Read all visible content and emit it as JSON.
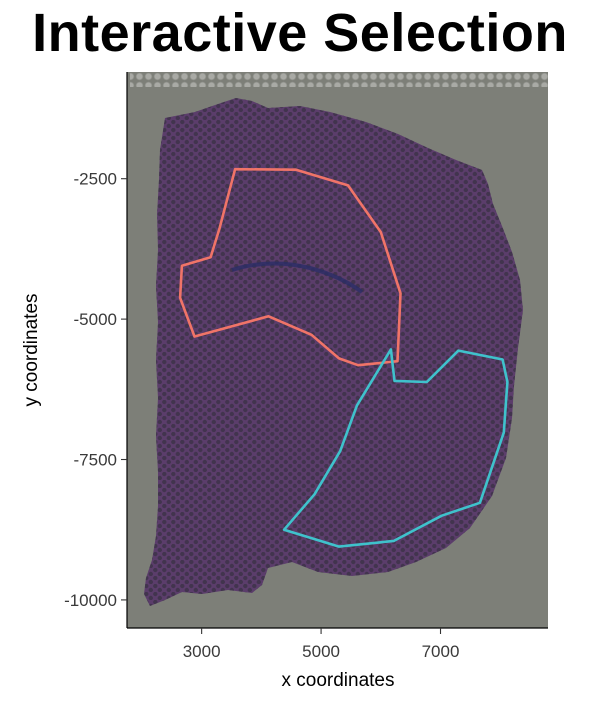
{
  "title": "Interactive Selection",
  "colors": {
    "panel_background": "#7d7f78",
    "tissue": "#5b3d6b",
    "spot": "#3f334b",
    "polygon_1": "#f07468",
    "polygon_2": "#3fc2cc"
  },
  "chart_data": {
    "type": "scatter",
    "title": "Interactive Selection",
    "xlabel": "x coordinates",
    "ylabel": "y coordinates",
    "xlim": [
      1750,
      8800
    ],
    "ylim": [
      -10500,
      -600
    ],
    "x_ticks": [
      {
        "value": 3000,
        "label": "3000"
      },
      {
        "value": 5000,
        "label": "5000"
      },
      {
        "value": 7000,
        "label": "7000"
      }
    ],
    "y_ticks": [
      {
        "value": -2500,
        "label": "-2500"
      },
      {
        "value": -5000,
        "label": "-5000"
      },
      {
        "value": -7500,
        "label": "-7500"
      },
      {
        "value": -10000,
        "label": "-10000"
      }
    ],
    "grid": false,
    "background_image": "H&E tissue section with spot grid",
    "selections": [
      {
        "color": "#f07468",
        "points": [
          [
            3560,
            -2330
          ],
          [
            4580,
            -2340
          ],
          [
            5450,
            -2620
          ],
          [
            6000,
            -3450
          ],
          [
            6330,
            -4540
          ],
          [
            6280,
            -5750
          ],
          [
            5620,
            -5820
          ],
          [
            5300,
            -5700
          ],
          [
            4840,
            -5280
          ],
          [
            4120,
            -4950
          ],
          [
            2880,
            -5310
          ],
          [
            2640,
            -4620
          ],
          [
            2670,
            -4050
          ],
          [
            3150,
            -3900
          ],
          [
            3300,
            -3380
          ],
          [
            3560,
            -2330
          ]
        ]
      },
      {
        "color": "#3fc2cc",
        "points": [
          [
            4380,
            -8750
          ],
          [
            5300,
            -9050
          ],
          [
            6220,
            -8950
          ],
          [
            7020,
            -8500
          ],
          [
            7660,
            -8270
          ],
          [
            8060,
            -7020
          ],
          [
            8120,
            -6120
          ],
          [
            8040,
            -5720
          ],
          [
            7300,
            -5560
          ],
          [
            6770,
            -6120
          ],
          [
            6230,
            -6100
          ],
          [
            6170,
            -5540
          ],
          [
            5600,
            -6540
          ],
          [
            5320,
            -7350
          ],
          [
            4890,
            -8120
          ],
          [
            4380,
            -8750
          ]
        ]
      }
    ]
  }
}
